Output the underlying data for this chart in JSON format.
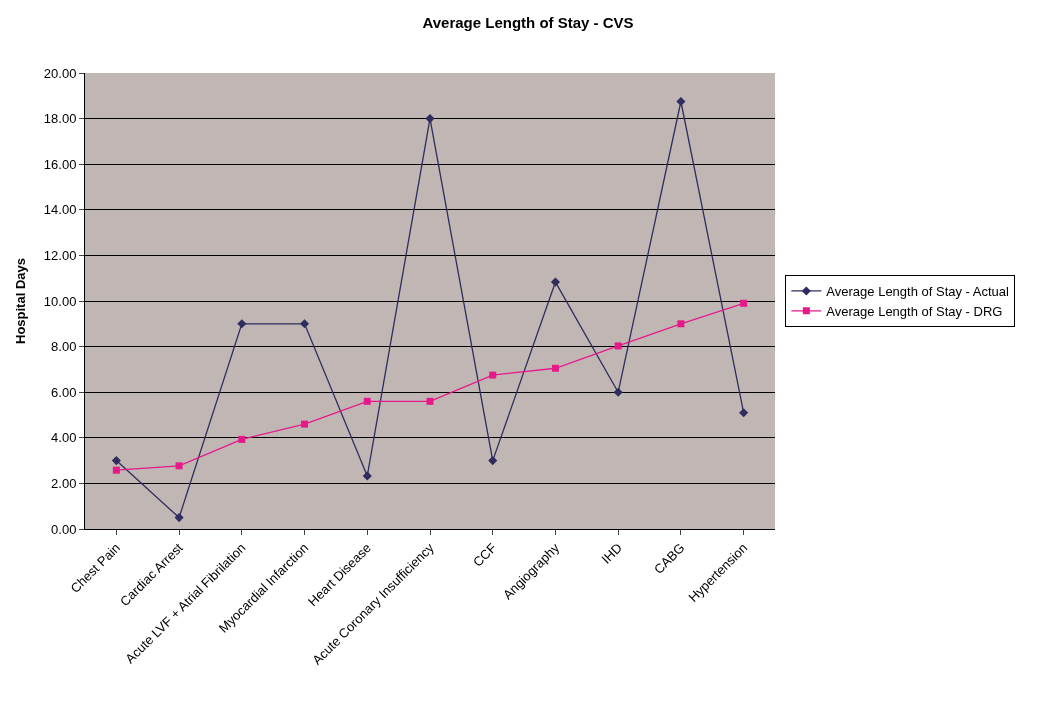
{
  "chart_data": {
    "type": "line",
    "title": "Average Length of Stay - CVS",
    "ylabel": "Hospital Days",
    "categories": [
      "Chest Pain",
      "Cardiac Arrest",
      "Acute LVF + Atrial Fibrilation",
      "Myocardial Infarction",
      "Heart Disease",
      "Acute Coronary Insufficiency",
      "CCF",
      "Angiography",
      "IHD",
      "CABG",
      "Hypertension"
    ],
    "series": [
      {
        "name": "Average Length of Stay - Actual",
        "color": "#2e2d5e",
        "marker": "diamond",
        "values": [
          3.0,
          0.5,
          9.0,
          9.0,
          2.33,
          18.0,
          3.0,
          10.83,
          6.0,
          18.75,
          5.1
        ]
      },
      {
        "name": "Average Length of Stay - DRG",
        "color": "#e6198a",
        "marker": "square",
        "values": [
          2.58,
          2.77,
          3.93,
          4.6,
          5.6,
          5.6,
          6.75,
          7.05,
          8.03,
          9.0,
          9.9
        ]
      }
    ],
    "ylim": [
      0,
      20
    ],
    "yticks": [
      {
        "value": 0,
        "label": "0.00"
      },
      {
        "value": 2,
        "label": "2.00"
      },
      {
        "value": 4,
        "label": "4.00"
      },
      {
        "value": 6,
        "label": "6.00"
      },
      {
        "value": 8,
        "label": "8.00"
      },
      {
        "value": 10,
        "label": "10.00"
      },
      {
        "value": 12,
        "label": "12.00"
      },
      {
        "value": 14,
        "label": "14.00"
      },
      {
        "value": 16,
        "label": "16.00"
      },
      {
        "value": 18,
        "label": "18.00"
      },
      {
        "value": 20,
        "label": "20.00"
      }
    ],
    "grid": "y",
    "legend": "right"
  }
}
